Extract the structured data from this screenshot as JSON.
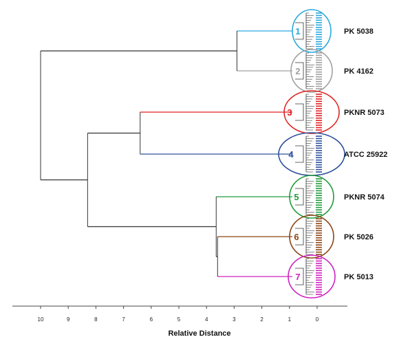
{
  "chart_data": {
    "type": "dendrogram",
    "xlabel": "Relative Distance",
    "x_ticks": [
      "10",
      "9",
      "8",
      "7",
      "6",
      "5",
      "4",
      "3",
      "2",
      "1",
      "0"
    ],
    "xlim": [
      10.5,
      -0.5
    ],
    "grid": false,
    "clusters": [
      {
        "number": "1",
        "label": "PK 5038",
        "color": "#29a8e0"
      },
      {
        "number": "2",
        "label": "PK 4162",
        "color": "#a0a0a0"
      },
      {
        "number": "3",
        "label": "PKNR 5073",
        "color": "#e02020"
      },
      {
        "number": "4",
        "label": "ATCC 25922",
        "color": "#2c4f9c"
      },
      {
        "number": "5",
        "label": "PKNR 5074",
        "color": "#1f9a3a"
      },
      {
        "number": "6",
        "label": "PK 5026",
        "color": "#8b4513"
      },
      {
        "number": "7",
        "label": "PK 5013",
        "color": "#d020c0"
      }
    ],
    "merges": [
      {
        "children": [
          "1",
          "2"
        ],
        "distance": 2.9
      },
      {
        "children": [
          "3",
          "4"
        ],
        "distance": 6.4
      },
      {
        "children": [
          "6",
          "7"
        ],
        "distance": 3.6
      },
      {
        "children": [
          "5",
          "6+7"
        ],
        "distance": 3.65
      },
      {
        "children": [
          "3+4",
          "5+6+7"
        ],
        "distance": 8.3
      },
      {
        "children": [
          "1+2",
          "3+4+5+6+7"
        ],
        "distance": 10.0
      }
    ]
  }
}
